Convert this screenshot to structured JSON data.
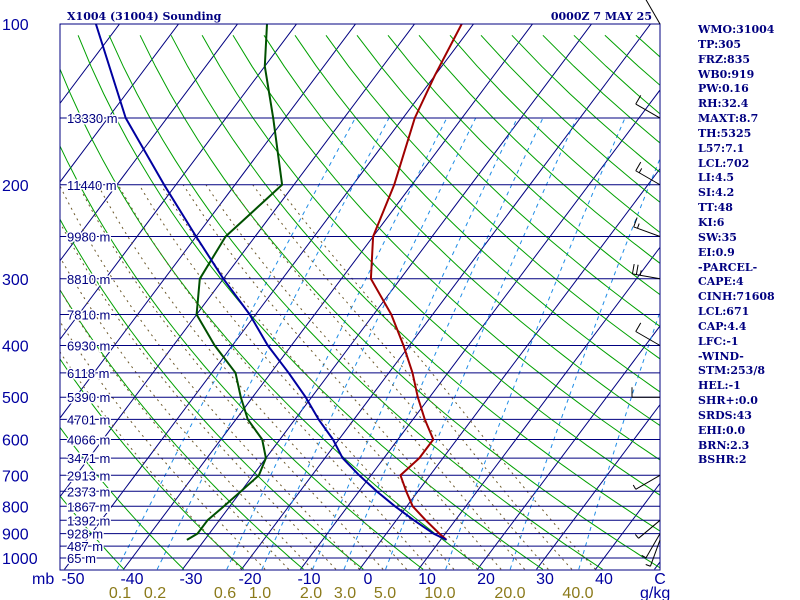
{
  "chart_data": {
    "type": "line",
    "title": "X1004 (31004) Sounding",
    "valid_time": "0000Z  7 MAY 25",
    "y_axis": {
      "name": "pressure",
      "unit": "mb",
      "scale": "log",
      "range": [
        1000,
        100
      ],
      "levels": [
        100,
        200,
        300,
        400,
        500,
        600,
        700,
        800,
        900,
        1000
      ],
      "heights": [
        {
          "p": 150,
          "label": "13330 m"
        },
        {
          "p": 200,
          "label": "11440 m"
        },
        {
          "p": 250,
          "label": "9980 m"
        },
        {
          "p": 300,
          "label": "8810 m"
        },
        {
          "p": 350,
          "label": "7810 m"
        },
        {
          "p": 400,
          "label": "6930 m"
        },
        {
          "p": 450,
          "label": "6118 m"
        },
        {
          "p": 500,
          "label": "5390 m"
        },
        {
          "p": 550,
          "label": "4701 m"
        },
        {
          "p": 600,
          "label": "4066 m"
        },
        {
          "p": 650,
          "label": "3471 m"
        },
        {
          "p": 700,
          "label": "2913 m"
        },
        {
          "p": 750,
          "label": "2373 m"
        },
        {
          "p": 800,
          "label": "1867 m"
        },
        {
          "p": 850,
          "label": "1392 m"
        },
        {
          "p": 900,
          "label": "928 m"
        },
        {
          "p": 950,
          "label": "487 m"
        },
        {
          "p": 1000,
          "label": "65 m"
        }
      ]
    },
    "x_axis": {
      "name": "temperature",
      "unit": "C",
      "ticks": [
        -50,
        -40,
        -30,
        -20,
        -10,
        0,
        10,
        20,
        30,
        40,
        "C"
      ]
    },
    "mixing_ratio_axis": {
      "unit": "g/kg",
      "labels": [
        "0.1",
        "0.2",
        "0.6",
        "1.0",
        "2.0",
        "3.0",
        "5.0",
        "10.0",
        "20.0",
        "40.0"
      ]
    },
    "series": [
      {
        "key": "temperature",
        "color": "#a00000",
        "points": [
          [
            925,
            11
          ],
          [
            900,
            9
          ],
          [
            850,
            5
          ],
          [
            800,
            1
          ],
          [
            750,
            -2
          ],
          [
            700,
            -5
          ],
          [
            650,
            -4
          ],
          [
            600,
            -4
          ],
          [
            550,
            -8
          ],
          [
            500,
            -12
          ],
          [
            450,
            -16
          ],
          [
            400,
            -21
          ],
          [
            350,
            -27
          ],
          [
            300,
            -35
          ],
          [
            250,
            -40
          ],
          [
            200,
            -43
          ],
          [
            150,
            -48
          ],
          [
            125,
            -50
          ],
          [
            100,
            -52
          ]
        ]
      },
      {
        "key": "dewpoint",
        "color": "#005000",
        "points": [
          [
            925,
            -33
          ],
          [
            900,
            -32
          ],
          [
            850,
            -32
          ],
          [
            800,
            -31
          ],
          [
            750,
            -30
          ],
          [
            700,
            -29
          ],
          [
            650,
            -30
          ],
          [
            600,
            -33
          ],
          [
            550,
            -38
          ],
          [
            500,
            -42
          ],
          [
            450,
            -46
          ],
          [
            400,
            -53
          ],
          [
            350,
            -60
          ],
          [
            300,
            -64
          ],
          [
            250,
            -65
          ],
          [
            200,
            -62
          ],
          [
            150,
            -72
          ],
          [
            120,
            -80
          ],
          [
            100,
            -85
          ]
        ]
      },
      {
        "key": "parcel",
        "color": "#0000a0",
        "points": [
          [
            925,
            11
          ],
          [
            900,
            8
          ],
          [
            850,
            3
          ],
          [
            800,
            -2
          ],
          [
            750,
            -7
          ],
          [
            700,
            -12
          ],
          [
            650,
            -17
          ],
          [
            600,
            -21
          ],
          [
            550,
            -26
          ],
          [
            500,
            -31
          ],
          [
            450,
            -37
          ],
          [
            400,
            -44
          ],
          [
            350,
            -51
          ],
          [
            300,
            -60
          ],
          [
            250,
            -70
          ],
          [
            200,
            -82
          ],
          [
            150,
            -97
          ],
          [
            100,
            -114
          ]
        ]
      }
    ],
    "wind_barbs": [
      {
        "p": 100,
        "dir": 330,
        "spd": 5
      },
      {
        "p": 150,
        "dir": 300,
        "spd": 10
      },
      {
        "p": 200,
        "dir": 300,
        "spd": 15
      },
      {
        "p": 250,
        "dir": 290,
        "spd": 15
      },
      {
        "p": 300,
        "dir": 280,
        "spd": 25
      },
      {
        "p": 400,
        "dir": 300,
        "spd": 10
      },
      {
        "p": 500,
        "dir": 270,
        "spd": 10
      },
      {
        "p": 700,
        "dir": 240,
        "spd": 5
      },
      {
        "p": 850,
        "dir": 230,
        "spd": 5
      },
      {
        "p": 900,
        "dir": 210,
        "spd": 5
      },
      {
        "p": 925,
        "dir": 200,
        "spd": 5
      }
    ],
    "indices": [
      "WMO:31004",
      "TP:305",
      "FRZ:835",
      "WB0:919",
      "PW:0.16",
      "RH:32.4",
      "MAXT:8.7",
      "TH:5325",
      "L57:7.1",
      "LCL:702",
      "LI:4.5",
      "SI:4.2",
      "TT:48",
      "KI:6",
      "SW:35",
      "EI:0.9",
      "-PARCEL-",
      "CAPE:4",
      "CINH:71608",
      "LCL:671",
      "CAP:4.4",
      "LFC:-1",
      "-WIND-",
      "STM:253/8",
      "HEL:-1",
      "SHR+:0.0",
      "SRDS:43",
      "EHI:0.0",
      "BRN:2.3",
      "BSHR:2"
    ],
    "colors": {
      "frame": "#000080",
      "isobar": "#000080",
      "isotherm": "#000080",
      "dry_adiabat": "#00a000",
      "moist_adiabat": "#6e5a2d",
      "mixing_ratio": "#1e8ce6",
      "mixing_label": "#8b7a1a"
    }
  }
}
